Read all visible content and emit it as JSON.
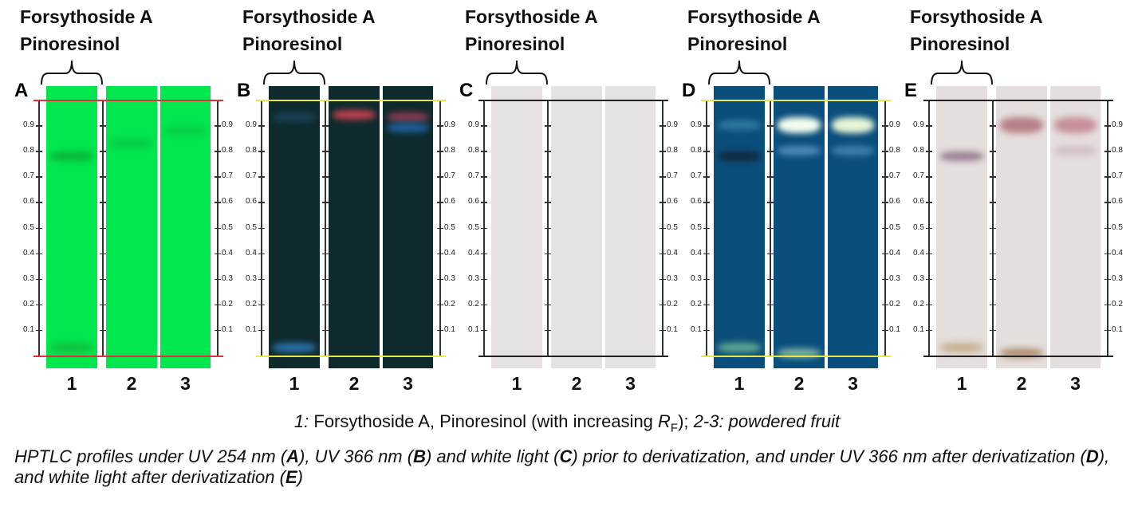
{
  "header": {
    "line1": "Forsythoside A",
    "line2": "Pinoresinol"
  },
  "rf_ticks": [
    "0.1",
    "0.2",
    "0.3",
    "0.4",
    "0.5",
    "0.6",
    "0.7",
    "0.8",
    "0.9"
  ],
  "lane_numbers": [
    "1",
    "2",
    "3"
  ],
  "panels": [
    {
      "label": "A",
      "plate_color": "#00e64d",
      "front_line_color": "#e0303a",
      "bands": [
        [
          {
            "rf": 0.78,
            "color": "#0bb53c"
          },
          {
            "rf": 0.03,
            "color": "#10c040"
          }
        ],
        [
          {
            "rf": 0.83,
            "color": "#05cc45"
          }
        ],
        [
          {
            "rf": 0.88,
            "color": "#05d047"
          }
        ]
      ]
    },
    {
      "label": "B",
      "plate_color": "#0e2a2c",
      "front_line_color": "#e8e84a",
      "bands": [
        [
          {
            "rf": 0.03,
            "color": "#2b6fa8"
          },
          {
            "rf": 0.93,
            "color": "#1b4055"
          }
        ],
        [
          {
            "rf": 0.94,
            "color": "#c04050"
          }
        ],
        [
          {
            "rf": 0.93,
            "color": "#8a3a50"
          },
          {
            "rf": 0.89,
            "color": "#1f5f9a"
          }
        ]
      ]
    },
    {
      "label": "C",
      "plate_color": "#e6e2e2",
      "front_line_color": "#222222",
      "bands": [
        [],
        [],
        []
      ]
    },
    {
      "label": "D",
      "plate_color": "#0a4e7c",
      "front_line_color": "#e8e84a",
      "bands": [
        [
          {
            "rf": 0.78,
            "color": "#10283a"
          },
          {
            "rf": 0.03,
            "color": "#5fa890"
          },
          {
            "rf": 0.9,
            "color": "#2e7aa0"
          }
        ],
        [
          {
            "rf": 0.9,
            "color": "#f4fff0"
          },
          {
            "rf": 0.8,
            "color": "#4f8ab8"
          },
          {
            "rf": 0.01,
            "color": "#7ab0a0"
          }
        ],
        [
          {
            "rf": 0.9,
            "color": "#e6f7d8"
          },
          {
            "rf": 0.8,
            "color": "#3f80b0"
          }
        ]
      ]
    },
    {
      "label": "E",
      "plate_color": "#e4dedc",
      "front_line_color": "#222222",
      "bands": [
        [
          {
            "rf": 0.78,
            "color": "#9a7f95"
          },
          {
            "rf": 0.03,
            "color": "#c8b090"
          }
        ],
        [
          {
            "rf": 0.9,
            "color": "#b88088"
          },
          {
            "rf": 0.01,
            "color": "#b09070"
          }
        ],
        [
          {
            "rf": 0.9,
            "color": "#c8909a"
          },
          {
            "rf": 0.8,
            "color": "#d4c0c4"
          }
        ]
      ]
    }
  ],
  "caption1": {
    "lane1_num": "1:",
    "lane1_text": " Forsythoside A, Pinoresinol (with increasing ",
    "rf": "R",
    "rf_sub": "F",
    "after": "); ",
    "lanes23": "2-3: powdered fruit"
  },
  "caption2": {
    "p1": "HPTLC profiles under UV 254 nm (",
    "A": "A",
    "p2": "), UV 366 nm (",
    "B": "B",
    "p3": ") and white light (",
    "C": "C",
    "p4": ") prior to derivatization, and under UV 366 nm after derivatization (",
    "D": "D",
    "p5": "), and white light after derivatization (",
    "E": "E",
    "p6": ")"
  }
}
